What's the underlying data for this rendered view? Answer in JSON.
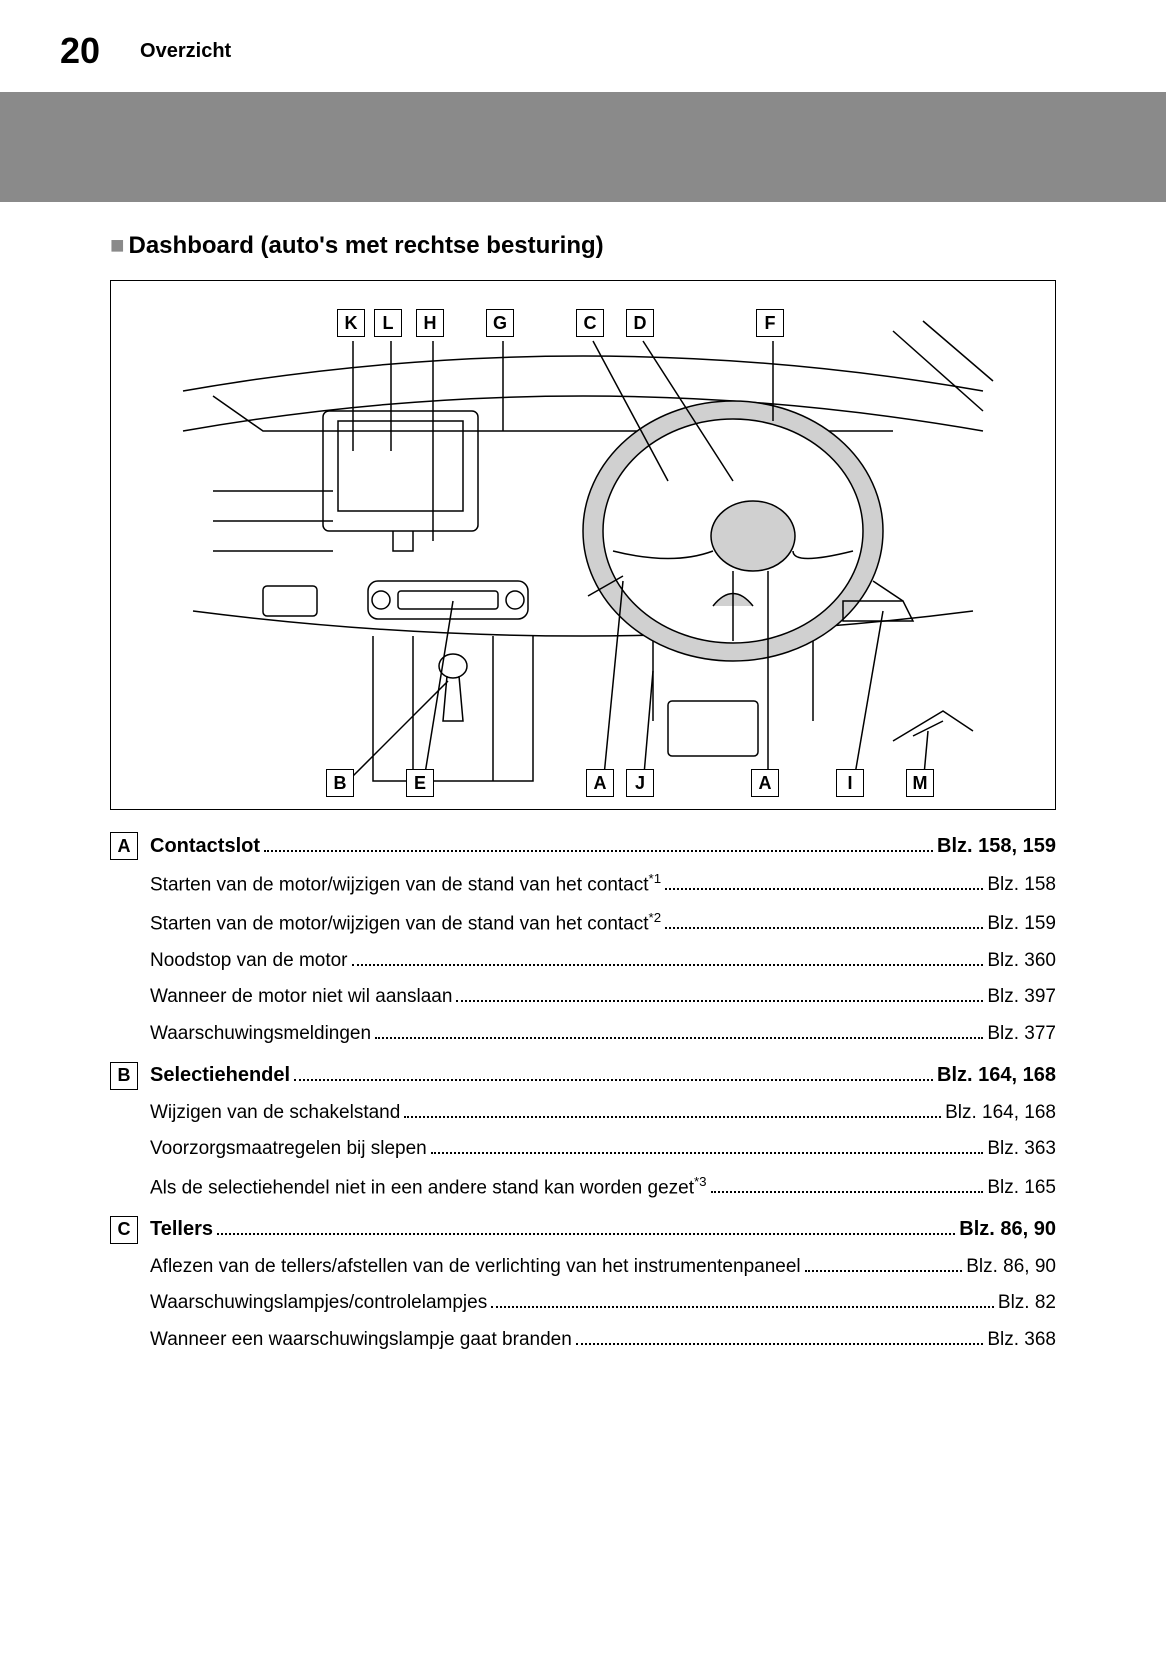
{
  "page_number": "20",
  "chapter": "Overzicht",
  "section_title": "Dashboard (auto's met rechtse besturing)",
  "diagram": {
    "top_labels": [
      "K",
      "L",
      "H",
      "G",
      "C",
      "D",
      "F"
    ],
    "bottom_labels": [
      "B",
      "E",
      "A",
      "J",
      "A",
      "I",
      "M"
    ]
  },
  "colors": {
    "gray_bar": "#8a8a8a",
    "bullet": "#8a8a8a",
    "steering_fill": "#d0d0d0"
  },
  "entries": [
    {
      "letter": "A",
      "title": "Contactslot",
      "title_page": "Blz. 158, 159",
      "subs": [
        {
          "text": "Starten van de motor/wijzigen van de stand van het contact",
          "sup": "*1",
          "page": "Blz. 158"
        },
        {
          "text": "Starten van de motor/wijzigen van de stand van het contact",
          "sup": "*2",
          "page": "Blz. 159"
        },
        {
          "text": "Noodstop van de motor",
          "page": "Blz. 360"
        },
        {
          "text": "Wanneer de motor niet wil aanslaan",
          "page": "Blz. 397"
        },
        {
          "text": "Waarschuwingsmeldingen",
          "page": "Blz. 377"
        }
      ]
    },
    {
      "letter": "B",
      "title": "Selectiehendel",
      "title_page": "Blz. 164, 168",
      "subs": [
        {
          "text": "Wijzigen van de schakelstand",
          "page": "Blz. 164, 168"
        },
        {
          "text": "Voorzorgsmaatregelen bij slepen",
          "page": "Blz. 363"
        },
        {
          "text": "Als de selectiehendel niet in een andere stand kan worden gezet",
          "sup": "*3",
          "page": "Blz. 165"
        }
      ]
    },
    {
      "letter": "C",
      "title": "Tellers",
      "title_page": "Blz. 86, 90",
      "subs": [
        {
          "text": "Aflezen van de tellers/afstellen van de verlichting van het instrumentenpaneel",
          "page": "Blz. 86, 90"
        },
        {
          "text": "Waarschuwingslampjes/controlelampjes",
          "page": "Blz. 82"
        },
        {
          "text": "Wanneer een waarschuwingslampje gaat branden",
          "page": "Blz. 368"
        }
      ]
    }
  ]
}
